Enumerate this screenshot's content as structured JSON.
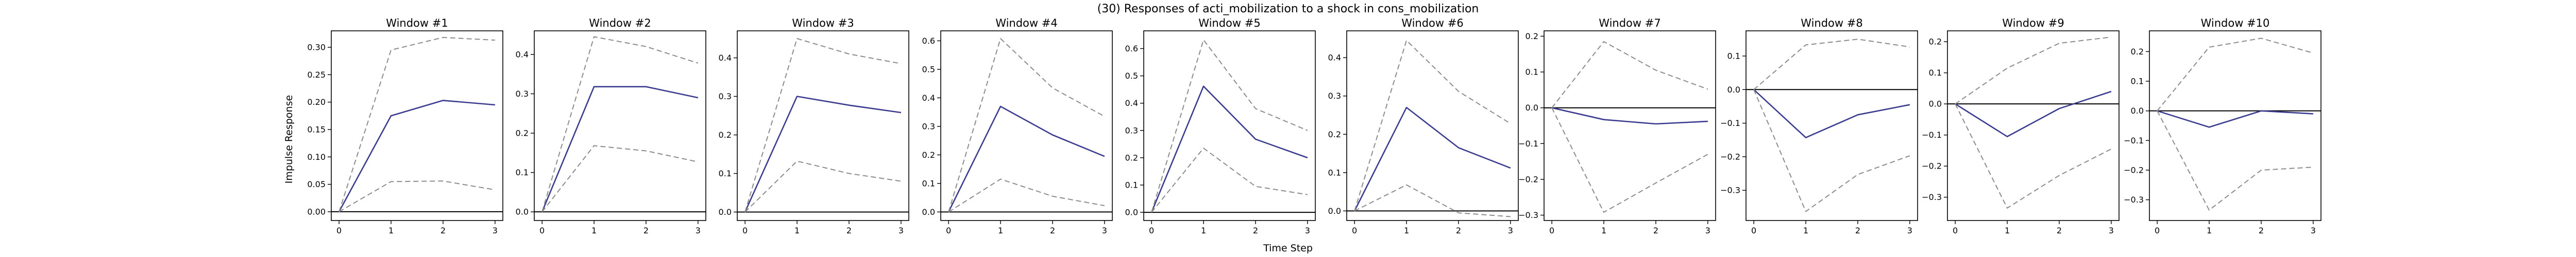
{
  "figure": {
    "title": "(30) Responses of acti_mobilization to a shock in cons_mobilization",
    "xlabel": "Time Step",
    "ylabel": "Impulse Response"
  },
  "colors": {
    "irf_line": "#3b3b8f",
    "band_line": "#8c8c8c",
    "zero_line": "#000000",
    "frame": "#000000"
  },
  "chart_data": [
    {
      "type": "line",
      "title": "Window #1",
      "x": [
        0,
        1,
        2,
        3
      ],
      "ylim": [
        -0.016,
        0.33
      ],
      "yticks": [
        0.0,
        0.05,
        0.1,
        0.15,
        0.2,
        0.25,
        0.3
      ],
      "ytick_labels": [
        "0.00",
        "0.05",
        "0.10",
        "0.15",
        "0.20",
        "0.25",
        "0.30"
      ],
      "series": [
        {
          "role": "irf",
          "values": [
            0,
            0.175,
            0.203,
            0.195
          ]
        },
        {
          "role": "upper",
          "values": [
            0,
            0.295,
            0.318,
            0.313
          ]
        },
        {
          "role": "lower",
          "values": [
            0,
            0.055,
            0.056,
            0.04
          ]
        }
      ]
    },
    {
      "type": "line",
      "title": "Window #2",
      "x": [
        0,
        1,
        2,
        3
      ],
      "ylim": [
        -0.022,
        0.46
      ],
      "yticks": [
        0.0,
        0.1,
        0.2,
        0.3,
        0.4
      ],
      "ytick_labels": [
        "0.0",
        "0.1",
        "0.2",
        "0.3",
        "0.4"
      ],
      "series": [
        {
          "role": "irf",
          "values": [
            0,
            0.318,
            0.318,
            0.29
          ]
        },
        {
          "role": "upper",
          "values": [
            0,
            0.445,
            0.42,
            0.378
          ]
        },
        {
          "role": "lower",
          "values": [
            0,
            0.168,
            0.155,
            0.127
          ]
        }
      ]
    },
    {
      "type": "line",
      "title": "Window #3",
      "x": [
        0,
        1,
        2,
        3
      ],
      "ylim": [
        -0.022,
        0.47
      ],
      "yticks": [
        0.0,
        0.1,
        0.2,
        0.3,
        0.4
      ],
      "ytick_labels": [
        "0.0",
        "0.1",
        "0.2",
        "0.3",
        "0.4"
      ],
      "series": [
        {
          "role": "irf",
          "values": [
            0,
            0.3,
            0.277,
            0.258
          ]
        },
        {
          "role": "upper",
          "values": [
            0,
            0.45,
            0.41,
            0.385
          ]
        },
        {
          "role": "lower",
          "values": [
            0,
            0.132,
            0.1,
            0.08
          ]
        }
      ]
    },
    {
      "type": "line",
      "title": "Window #4",
      "x": [
        0,
        1,
        2,
        3
      ],
      "ylim": [
        -0.03,
        0.635
      ],
      "yticks": [
        0.0,
        0.1,
        0.2,
        0.3,
        0.4,
        0.5,
        0.6
      ],
      "ytick_labels": [
        "0.0",
        "0.1",
        "0.2",
        "0.3",
        "0.4",
        "0.5",
        "0.6"
      ],
      "series": [
        {
          "role": "irf",
          "values": [
            0,
            0.37,
            0.27,
            0.195
          ]
        },
        {
          "role": "upper",
          "values": [
            0,
            0.608,
            0.435,
            0.335
          ]
        },
        {
          "role": "lower",
          "values": [
            0,
            0.115,
            0.055,
            0.022
          ]
        }
      ]
    },
    {
      "type": "line",
      "title": "Window #5",
      "x": [
        0,
        1,
        2,
        3
      ],
      "ylim": [
        -0.03,
        0.665
      ],
      "yticks": [
        0.0,
        0.1,
        0.2,
        0.3,
        0.4,
        0.5,
        0.6
      ],
      "ytick_labels": [
        "0.0",
        "0.1",
        "0.2",
        "0.3",
        "0.4",
        "0.5",
        "0.6"
      ],
      "series": [
        {
          "role": "irf",
          "values": [
            0,
            0.462,
            0.268,
            0.2
          ]
        },
        {
          "role": "upper",
          "values": [
            0,
            0.632,
            0.38,
            0.3
          ]
        },
        {
          "role": "lower",
          "values": [
            0,
            0.235,
            0.095,
            0.065
          ]
        }
      ]
    },
    {
      "type": "line",
      "title": "Window #6",
      "x": [
        0,
        1,
        2,
        3
      ],
      "ylim": [
        -0.025,
        0.47
      ],
      "yticks": [
        0.0,
        0.1,
        0.2,
        0.3,
        0.4
      ],
      "ytick_labels": [
        "0.0",
        "0.1",
        "0.2",
        "0.3",
        "0.4"
      ],
      "series": [
        {
          "role": "irf",
          "values": [
            0,
            0.27,
            0.165,
            0.112
          ]
        },
        {
          "role": "upper",
          "values": [
            0,
            0.445,
            0.312,
            0.228
          ]
        },
        {
          "role": "lower",
          "values": [
            0,
            0.068,
            -0.005,
            -0.015
          ]
        }
      ]
    },
    {
      "type": "line",
      "title": "Window #7",
      "x": [
        0,
        1,
        2,
        3
      ],
      "ylim": [
        -0.315,
        0.215
      ],
      "yticks": [
        -0.3,
        -0.2,
        -0.1,
        0.0,
        0.1,
        0.2
      ],
      "ytick_labels": [
        "−0.3",
        "−0.2",
        "−0.1",
        "0.0",
        "0.1",
        "0.2"
      ],
      "series": [
        {
          "role": "irf",
          "values": [
            0,
            -0.033,
            -0.045,
            -0.038
          ]
        },
        {
          "role": "upper",
          "values": [
            0,
            0.185,
            0.105,
            0.052
          ]
        },
        {
          "role": "lower",
          "values": [
            0,
            -0.292,
            -0.21,
            -0.13
          ]
        }
      ]
    },
    {
      "type": "line",
      "title": "Window #8",
      "x": [
        0,
        1,
        2,
        3
      ],
      "ylim": [
        -0.39,
        0.175
      ],
      "yticks": [
        -0.3,
        -0.2,
        -0.1,
        0.0,
        0.1
      ],
      "ytick_labels": [
        "−0.3",
        "−0.2",
        "−0.1",
        "0.0",
        "0.1"
      ],
      "series": [
        {
          "role": "irf",
          "values": [
            0,
            -0.143,
            -0.075,
            -0.045
          ]
        },
        {
          "role": "upper",
          "values": [
            0,
            0.133,
            0.15,
            0.127
          ]
        },
        {
          "role": "lower",
          "values": [
            0,
            -0.363,
            -0.253,
            -0.197
          ]
        }
      ]
    },
    {
      "type": "line",
      "title": "Window #9",
      "x": [
        0,
        1,
        2,
        3
      ],
      "ylim": [
        -0.375,
        0.235
      ],
      "yticks": [
        -0.3,
        -0.2,
        -0.1,
        0.0,
        0.1,
        0.2
      ],
      "ytick_labels": [
        "−0.3",
        "−0.2",
        "−0.1",
        "0.0",
        "0.1",
        "0.2"
      ],
      "series": [
        {
          "role": "irf",
          "values": [
            0,
            -0.105,
            -0.015,
            0.04
          ]
        },
        {
          "role": "upper",
          "values": [
            0,
            0.115,
            0.195,
            0.215
          ]
        },
        {
          "role": "lower",
          "values": [
            0,
            -0.335,
            -0.23,
            -0.145
          ]
        }
      ]
    },
    {
      "type": "line",
      "title": "Window #10",
      "x": [
        0,
        1,
        2,
        3
      ],
      "ylim": [
        -0.37,
        0.27
      ],
      "yticks": [
        -0.3,
        -0.2,
        -0.1,
        0.0,
        0.1,
        0.2
      ],
      "ytick_labels": [
        "−0.3",
        "−0.2",
        "−0.1",
        "0.0",
        "0.1",
        "0.2"
      ],
      "series": [
        {
          "role": "irf",
          "values": [
            0,
            -0.055,
            0.0,
            -0.01
          ]
        },
        {
          "role": "upper",
          "values": [
            0,
            0.215,
            0.245,
            0.195
          ]
        },
        {
          "role": "lower",
          "values": [
            0,
            -0.335,
            -0.2,
            -0.19
          ]
        }
      ]
    }
  ]
}
